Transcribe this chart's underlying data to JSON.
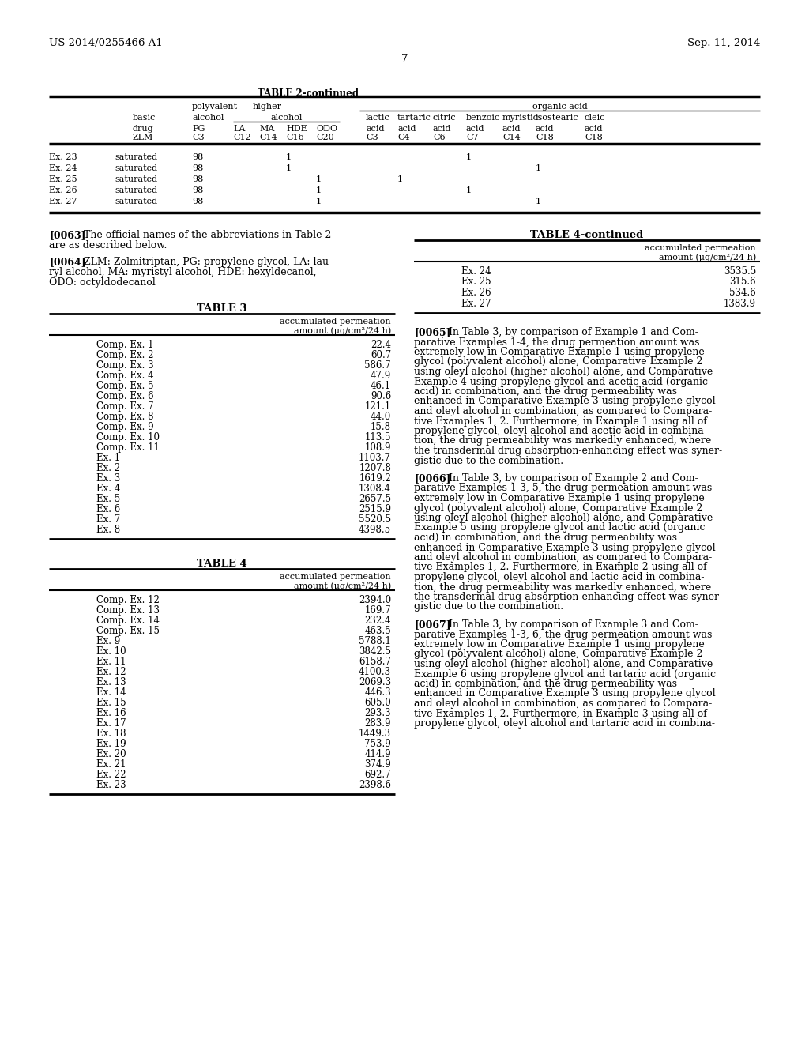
{
  "page_header_left": "US 2014/0255466 A1",
  "page_header_right": "Sep. 11, 2014",
  "page_number": "7",
  "bg_color": "#ffffff",
  "table2_continued_title": "TABLE 2-continued",
  "table2_rows": [
    [
      "Ex. 23",
      "saturated",
      "98",
      "",
      "",
      "1",
      "",
      "",
      "",
      "",
      "1",
      "",
      ""
    ],
    [
      "Ex. 24",
      "saturated",
      "98",
      "",
      "",
      "1",
      "",
      "",
      "",
      "",
      "",
      "",
      "1"
    ],
    [
      "Ex. 25",
      "saturated",
      "98",
      "",
      "",
      "",
      "1",
      "",
      "1",
      "",
      "",
      "",
      ""
    ],
    [
      "Ex. 26",
      "saturated",
      "98",
      "",
      "",
      "",
      "1",
      "",
      "",
      "",
      "1",
      "",
      ""
    ],
    [
      "Ex. 27",
      "saturated",
      "98",
      "",
      "",
      "",
      "1",
      "",
      "",
      "",
      "",
      "",
      "1"
    ]
  ],
  "table3_title": "TABLE 3",
  "table3_col_header_line1": "accumulated permeation",
  "table3_col_header_line2": "amount (μg/cm²/24 h)",
  "table3_rows": [
    [
      "Comp. Ex. 1",
      "22.4"
    ],
    [
      "Comp. Ex. 2",
      "60.7"
    ],
    [
      "Comp. Ex. 3",
      "586.7"
    ],
    [
      "Comp. Ex. 4",
      "47.9"
    ],
    [
      "Comp. Ex. 5",
      "46.1"
    ],
    [
      "Comp. Ex. 6",
      "90.6"
    ],
    [
      "Comp. Ex. 7",
      "121.1"
    ],
    [
      "Comp. Ex. 8",
      "44.0"
    ],
    [
      "Comp. Ex. 9",
      "15.8"
    ],
    [
      "Comp. Ex. 10",
      "113.5"
    ],
    [
      "Comp. Ex. 11",
      "108.9"
    ],
    [
      "Ex. 1",
      "1103.7"
    ],
    [
      "Ex. 2",
      "1207.8"
    ],
    [
      "Ex. 3",
      "1619.2"
    ],
    [
      "Ex. 4",
      "1308.4"
    ],
    [
      "Ex. 5",
      "2657.5"
    ],
    [
      "Ex. 6",
      "2515.9"
    ],
    [
      "Ex. 7",
      "5520.5"
    ],
    [
      "Ex. 8",
      "4398.5"
    ]
  ],
  "table4_title": "TABLE 4",
  "table4_col_header_line1": "accumulated permeation",
  "table4_col_header_line2": "amount (μg/cm²/24 h)",
  "table4_rows": [
    [
      "Comp. Ex. 12",
      "2394.0"
    ],
    [
      "Comp. Ex. 13",
      "169.7"
    ],
    [
      "Comp. Ex. 14",
      "232.4"
    ],
    [
      "Comp. Ex. 15",
      "463.5"
    ],
    [
      "Ex. 9",
      "5788.1"
    ],
    [
      "Ex. 10",
      "3842.5"
    ],
    [
      "Ex. 11",
      "6158.7"
    ],
    [
      "Ex. 12",
      "4100.3"
    ],
    [
      "Ex. 13",
      "2069.3"
    ],
    [
      "Ex. 14",
      "446.3"
    ],
    [
      "Ex. 15",
      "605.0"
    ],
    [
      "Ex. 16",
      "293.3"
    ],
    [
      "Ex. 17",
      "283.9"
    ],
    [
      "Ex. 18",
      "1449.3"
    ],
    [
      "Ex. 19",
      "753.9"
    ],
    [
      "Ex. 20",
      "414.9"
    ],
    [
      "Ex. 21",
      "374.9"
    ],
    [
      "Ex. 22",
      "692.7"
    ],
    [
      "Ex. 23",
      "2398.6"
    ]
  ],
  "table4_continued_title": "TABLE 4-continued",
  "table4_cont_col_header_line1": "accumulated permeation",
  "table4_cont_col_header_line2": "amount (μg/cm²/24 h)",
  "table4_cont_rows": [
    [
      "Ex. 24",
      "3535.5"
    ],
    [
      "Ex. 25",
      "315.6"
    ],
    [
      "Ex. 26",
      "534.6"
    ],
    [
      "Ex. 27",
      "1383.9"
    ]
  ],
  "para_0063_tag": "[0063]",
  "para_0063_text": "The official names of the abbreviations in Table 2\nare as described below.",
  "para_0064_tag": "[0064]",
  "para_0064_text": "ZLM: Zolmitriptan, PG: propylene glycol, LA: lau-\nryl alcohol, MA: myristyl alcohol, HDE: hexyldecanol,\nODO: octyldodecanol",
  "para_0065_tag": "[0065]",
  "para_0065_lines": [
    "In Table 3, by comparison of Example 1 and Com-",
    "parative Examples 1-4, the drug permeation amount was",
    "extremely low in Comparative Example 1 using propylene",
    "glycol (polyvalent alcohol) alone, Comparative Example 2",
    "using oleyl alcohol (higher alcohol) alone, and Comparative",
    "Example 4 using propylene glycol and acetic acid (organic",
    "acid) in combination, and the drug permeability was",
    "enhanced in Comparative Example 3 using propylene glycol",
    "and oleyl alcohol in combination, as compared to Compara-",
    "tive Examples 1, 2. Furthermore, in Example 1 using all of",
    "propylene glycol, oleyl alcohol and acetic acid in combina-",
    "tion, the drug permeability was markedly enhanced, where",
    "the transdermal drug absorption-enhancing effect was syner-",
    "gistic due to the combination."
  ],
  "para_0066_tag": "[0066]",
  "para_0066_lines": [
    "In Table 3, by comparison of Example 2 and Com-",
    "parative Examples 1-3, 5, the drug permeation amount was",
    "extremely low in Comparative Example 1 using propylene",
    "glycol (polyvalent alcohol) alone, Comparative Example 2",
    "using oleyl alcohol (higher alcohol) alone, and Comparative",
    "Example 5 using propylene glycol and lactic acid (organic",
    "acid) in combination, and the drug permeability was",
    "enhanced in Comparative Example 3 using propylene glycol",
    "and oleyl alcohol in combination, as compared to Compara-",
    "tive Examples 1, 2. Furthermore, in Example 2 using all of",
    "propylene glycol, oleyl alcohol and lactic acid in combina-",
    "tion, the drug permeability was markedly enhanced, where",
    "the transdermal drug absorption-enhancing effect was syner-",
    "gistic due to the combination."
  ],
  "para_0067_tag": "[0067]",
  "para_0067_lines": [
    "In Table 3, by comparison of Example 3 and Com-",
    "parative Examples 1-3, 6, the drug permeation amount was",
    "extremely low in Comparative Example 1 using propylene",
    "glycol (polyvalent alcohol) alone, Comparative Example 2",
    "using oleyl alcohol (higher alcohol) alone, and Comparative",
    "Example 6 using propylene glycol and tartaric acid (organic",
    "acid) in combination, and the drug permeability was",
    "enhanced in Comparative Example 3 using propylene glycol",
    "and oleyl alcohol in combination, as compared to Compara-",
    "tive Examples 1, 2. Furthermore, in Example 3 using all of",
    "propylene glycol, oleyl alcohol and tartaric acid in combina-"
  ]
}
